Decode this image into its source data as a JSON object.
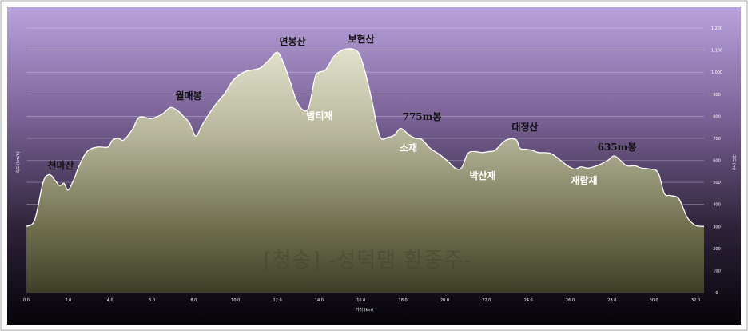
{
  "chart_data": {
    "type": "area",
    "xlabel": "거리 (km)",
    "ylabel_left": "속도 (km/h)",
    "ylabel_right": "고도 (m)",
    "watermark": "[청송] -성덕댐 환종주-",
    "bottom_text": "",
    "xlim": [
      0,
      32.4
    ],
    "ylim": [
      0,
      1200
    ],
    "x_ticks": [
      "0.0",
      "2.0",
      "4.0",
      "6.0",
      "8.0",
      "10.0",
      "12.0",
      "14.0",
      "16.0",
      "18.0",
      "20.0",
      "22.0",
      "24.0",
      "26.0",
      "28.0",
      "30.0",
      "32.0"
    ],
    "y_ticks": [
      "0",
      "100",
      "200",
      "300",
      "400",
      "500",
      "600",
      "700",
      "800",
      "900",
      "1,000",
      "1,100",
      "1,200"
    ],
    "grid": true,
    "colors": {
      "fill_top": "#dcdcc6",
      "fill_bottom": "#4a4a2e",
      "line": "#ffffff",
      "bg_top": "#b49bd6",
      "bg_bottom": "#060309"
    },
    "x": [
      0,
      0.4,
      0.8,
      1.1,
      1.4,
      1.6,
      1.8,
      2.0,
      2.3,
      2.5,
      2.9,
      3.4,
      3.9,
      4.1,
      4.4,
      4.6,
      4.8,
      5.1,
      5.4,
      6.0,
      6.5,
      6.9,
      7.3,
      7.5,
      7.8,
      8.1,
      8.4,
      8.8,
      9.1,
      9.5,
      9.9,
      10.4,
      10.8,
      11.2,
      11.6,
      12.0,
      12.3,
      12.6,
      12.9,
      13.2,
      13.5,
      13.8,
      14.0,
      14.3,
      14.7,
      15.0,
      15.3,
      15.6,
      15.9,
      16.2,
      16.5,
      16.9,
      17.3,
      17.6,
      17.9,
      18.3,
      18.6,
      18.9,
      19.3,
      19.7,
      20.1,
      20.5,
      20.8,
      21.1,
      21.4,
      21.8,
      22.1,
      22.4,
      22.9,
      23.4,
      23.6,
      23.9,
      24.2,
      24.5,
      25.1,
      25.8,
      26.2,
      26.5,
      26.9,
      27.4,
      27.8,
      28.1,
      28.4,
      28.7,
      29.1,
      29.4,
      29.8,
      30.2,
      30.5,
      30.8,
      31.2,
      31.6,
      32.0,
      32.4
    ],
    "values": [
      300,
      330,
      500,
      535,
      505,
      485,
      495,
      465,
      520,
      570,
      640,
      660,
      660,
      690,
      700,
      690,
      705,
      745,
      795,
      790,
      810,
      840,
      820,
      800,
      770,
      710,
      760,
      820,
      860,
      905,
      965,
      1000,
      1010,
      1020,
      1055,
      1090,
      1040,
      960,
      875,
      830,
      840,
      975,
      1000,
      1010,
      1070,
      1095,
      1105,
      1105,
      1085,
      1000,
      880,
      710,
      705,
      715,
      745,
      715,
      700,
      695,
      655,
      630,
      600,
      565,
      565,
      630,
      640,
      635,
      640,
      645,
      690,
      695,
      655,
      650,
      645,
      635,
      630,
      580,
      560,
      570,
      565,
      580,
      600,
      620,
      600,
      575,
      575,
      565,
      560,
      545,
      450,
      440,
      425,
      340,
      305,
      300
    ],
    "annotations": [
      {
        "text": "천마산",
        "x": 1.3,
        "style": "dark"
      },
      {
        "text": "월매봉",
        "x": 7.8,
        "style": "dark"
      },
      {
        "text": "면봉산",
        "x": 12.7,
        "style": "dark"
      },
      {
        "text": "보현산",
        "x": 16.4,
        "style": "dark"
      },
      {
        "text": "775m봉",
        "x": 18.9,
        "style": "dark"
      },
      {
        "text": "밤티재",
        "x": 14.0,
        "style": "light"
      },
      {
        "text": "소재",
        "x": 18.3,
        "style": "light"
      },
      {
        "text": "박산재",
        "x": 21.8,
        "style": "light"
      },
      {
        "text": "대정산",
        "x": 23.5,
        "style": "dark"
      },
      {
        "text": "재랍재",
        "x": 27.0,
        "style": "light"
      },
      {
        "text": "635m봉",
        "x": 28.0,
        "style": "dark"
      }
    ]
  }
}
